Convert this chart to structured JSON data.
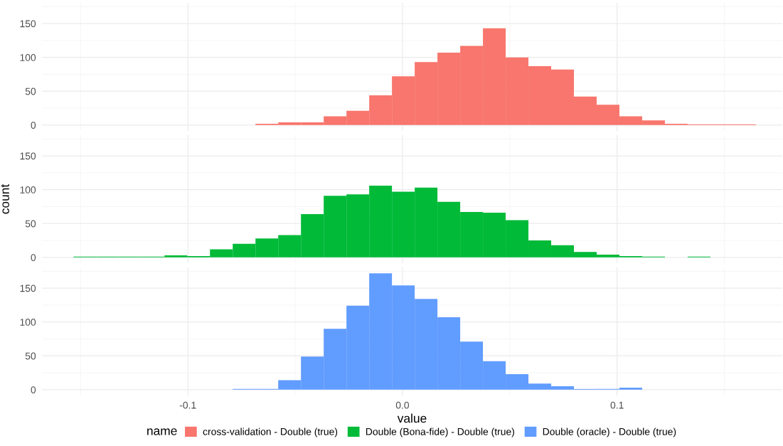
{
  "chart_data": [
    {
      "type": "histogram",
      "bins": [
        -0.1533,
        -0.1427,
        -0.1321,
        -0.1215,
        -0.1109,
        -0.1003,
        -0.0897,
        -0.0791,
        -0.0685,
        -0.0579,
        -0.0473,
        -0.0367,
        -0.0261,
        -0.0155,
        -0.0049,
        0.0057,
        0.0163,
        0.0269,
        0.0375,
        0.0481,
        0.0587,
        0.0693,
        0.0799,
        0.0905,
        0.1011,
        0.1117,
        0.1223,
        0.1329,
        0.1435,
        0.1541,
        0.1647
      ],
      "series": [
        {
          "name": "cross-validation - Double (true)",
          "color": "#f8766d",
          "values": [
            0,
            0,
            0,
            0,
            0,
            0,
            0,
            0,
            2,
            4,
            4,
            13,
            21,
            44,
            72,
            93,
            107,
            117,
            143,
            100,
            87,
            82,
            42,
            30,
            13,
            7,
            2,
            1,
            1,
            1
          ]
        }
      ],
      "xlim": [
        -0.168,
        0.177
      ],
      "xticks": [
        {
          "value": -0.1,
          "label": null
        },
        {
          "value": 0.0,
          "label": null
        },
        {
          "value": 0.1,
          "label": null
        }
      ],
      "ylim": [
        -8.6,
        180.6
      ],
      "yticks": [
        0,
        50,
        100,
        150
      ],
      "tick_labels": "y",
      "grid": true
    },
    {
      "type": "histogram",
      "bins": [
        -0.1533,
        -0.1427,
        -0.1321,
        -0.1215,
        -0.1109,
        -0.1003,
        -0.0897,
        -0.0791,
        -0.0685,
        -0.0579,
        -0.0473,
        -0.0367,
        -0.0261,
        -0.0155,
        -0.0049,
        0.0057,
        0.0163,
        0.0269,
        0.0375,
        0.0481,
        0.0587,
        0.0693,
        0.0799,
        0.0905,
        0.1011,
        0.1117,
        0.1223,
        0.1329,
        0.1435,
        0.1541,
        0.1647
      ],
      "series": [
        {
          "name": "Double (Bona-fide) - Double (true)",
          "color": "#00ba38",
          "values": [
            1,
            1,
            1,
            1,
            3,
            2,
            12,
            20,
            28,
            33,
            64,
            91,
            93,
            106,
            97,
            103,
            82,
            67,
            66,
            55,
            25,
            18,
            8,
            4,
            2,
            1,
            0,
            1,
            0,
            0
          ]
        }
      ],
      "ylabel": "count",
      "xlim": [
        -0.168,
        0.177
      ],
      "xticks": [
        {
          "value": -0.1,
          "label": null
        },
        {
          "value": 0.0,
          "label": null
        },
        {
          "value": 0.1,
          "label": null
        }
      ],
      "ylim": [
        -8.6,
        180.6
      ],
      "yticks": [
        0,
        50,
        100,
        150
      ],
      "tick_labels": "y",
      "grid": true
    },
    {
      "type": "histogram",
      "bins": [
        -0.1533,
        -0.1427,
        -0.1321,
        -0.1215,
        -0.1109,
        -0.1003,
        -0.0897,
        -0.0791,
        -0.0685,
        -0.0579,
        -0.0473,
        -0.0367,
        -0.0261,
        -0.0155,
        -0.0049,
        0.0057,
        0.0163,
        0.0269,
        0.0375,
        0.0481,
        0.0587,
        0.0693,
        0.0799,
        0.0905,
        0.1011,
        0.1117,
        0.1223,
        0.1329,
        0.1435,
        0.1541,
        0.1647
      ],
      "series": [
        {
          "name": "Double (oracle) - Double (true)",
          "color": "#619cff",
          "values": [
            0,
            0,
            0,
            0,
            0,
            0,
            0,
            1,
            1,
            14,
            49,
            90,
            124,
            172,
            154,
            134,
            107,
            71,
            42,
            23,
            9,
            5,
            1,
            1,
            3,
            0,
            0,
            0,
            0,
            0
          ]
        }
      ],
      "xlabel": "value",
      "legend": "bottom",
      "legend_title": "name",
      "xlim": [
        -0.168,
        0.177
      ],
      "xticks": [
        {
          "value": -0.1,
          "label": "-0.1"
        },
        {
          "value": 0.0,
          "label": "0.0"
        },
        {
          "value": 0.1,
          "label": "0.1"
        }
      ],
      "ylim": [
        -8.6,
        180.6
      ],
      "yticks": [
        0,
        50,
        100,
        150
      ],
      "grid": true
    }
  ]
}
